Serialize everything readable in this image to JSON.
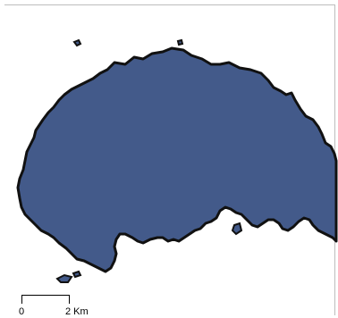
{
  "map": {
    "land_color": "#435a8a",
    "outline_color": "#111111"
  },
  "scale": {
    "start_label": "0",
    "end_label": "2 Km"
  }
}
